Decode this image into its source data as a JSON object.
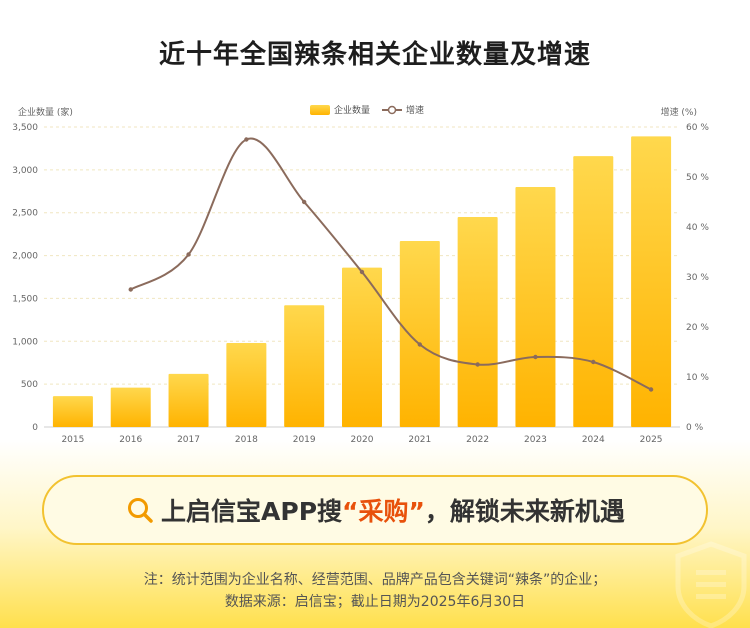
{
  "chart_data": {
    "type": "bar+line",
    "title": "近十年全国辣条相关企业数量及增速",
    "categories": [
      "2015",
      "2016",
      "2017",
      "2018",
      "2019",
      "2020",
      "2021",
      "2022",
      "2023",
      "2024",
      "2025"
    ],
    "series": [
      {
        "name": "企业数量",
        "type": "bar",
        "axis": "left",
        "values": [
          360,
          460,
          620,
          980,
          1420,
          1860,
          2170,
          2450,
          2800,
          3160,
          3390
        ]
      },
      {
        "name": "增速",
        "type": "line",
        "axis": "right",
        "values": [
          null,
          27.5,
          34.5,
          57.5,
          45.0,
          31.0,
          16.5,
          12.5,
          14.0,
          13.0,
          7.5
        ]
      }
    ],
    "ylabel_left": "企业数量 (家)",
    "ylabel_right": "增速 (%)",
    "ylim_left": [
      0,
      3500
    ],
    "ylim_right": [
      0,
      60
    ],
    "yticks_left": [
      "0",
      "500",
      "1,000",
      "1,500",
      "2,000",
      "2,500",
      "3,000",
      "3,500"
    ],
    "yticks_right": [
      "0 %",
      "10 %",
      "20 %",
      "30 %",
      "40 %",
      "50 %",
      "60 %"
    ],
    "legend_position": "top-center",
    "grid": true,
    "colors": {
      "bar_top": "#ffd84d",
      "bar_bottom": "#ffb300",
      "line": "#8b6b5c"
    }
  },
  "banner": {
    "text_before": "上启信宝APP搜",
    "highlight": "“采购”",
    "text_after": "，解锁未来新机遇",
    "icon": "search-icon"
  },
  "footnote": {
    "line1": "注：统计范围为企业名称、经营范围、品牌产品包含关键词“辣条”的企业；",
    "line2": "数据来源：启信宝；截止日期为2025年6月30日"
  }
}
